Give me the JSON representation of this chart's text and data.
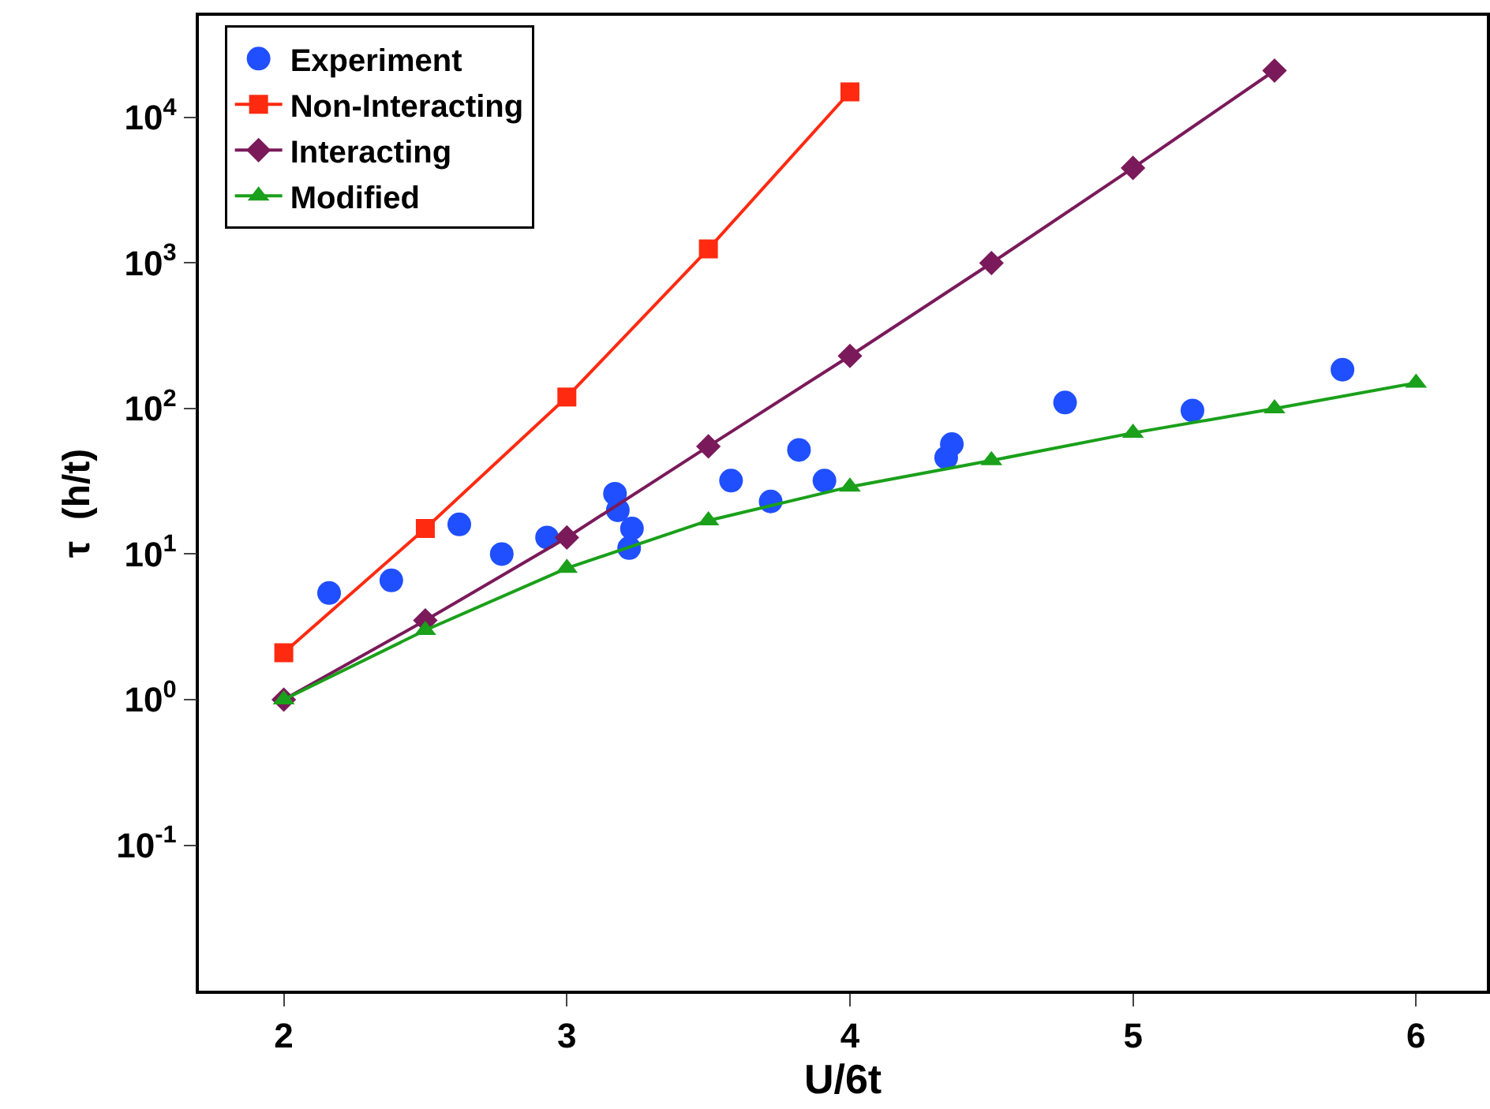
{
  "chart_data": {
    "type": "line",
    "xlabel": "U/6t",
    "ylabel": "τ  (h/t)",
    "log": "y",
    "grid": false,
    "legend": "top left",
    "xlim": [
      1.7,
      6.25
    ],
    "xticks": [
      2,
      3,
      4,
      5,
      6
    ],
    "ylim": [
      0.01,
      50000
    ],
    "yticks": [
      {
        "value": 0.1,
        "label": "10$^{-1}$"
      },
      {
        "value": 1,
        "label": "10$^{0}$"
      },
      {
        "value": 10,
        "label": "10$^{1}$"
      },
      {
        "value": 100,
        "label": "10$^{2}$"
      },
      {
        "value": 1000,
        "label": "10$^{3}$"
      },
      {
        "value": 10000,
        "label": "10$^{4}$"
      }
    ],
    "series": [
      {
        "name": "Experiment",
        "type": "scatter",
        "marker": "circle",
        "color": "#1f4fff",
        "x": [
          2.16,
          2.38,
          2.62,
          2.77,
          2.93,
          3.17,
          3.18,
          3.22,
          3.23,
          3.58,
          3.72,
          3.82,
          3.91,
          4.34,
          4.36,
          4.76,
          5.21,
          5.74
        ],
        "values": [
          5.4,
          6.6,
          16,
          10,
          13,
          26,
          20,
          11,
          15,
          32,
          23,
          52,
          32,
          46,
          57,
          110,
          97,
          185
        ]
      },
      {
        "name": "Non-Interacting",
        "marker": "square",
        "color": "#ff2a10",
        "x": [
          2,
          2.5,
          3,
          3.5,
          4
        ],
        "values": [
          2.1,
          15,
          120,
          1250,
          15000
        ]
      },
      {
        "name": "Interacting",
        "marker": "diamond",
        "color": "#7a1a5a",
        "x": [
          2,
          2.5,
          3,
          3.5,
          4,
          4.5,
          5,
          5.5
        ],
        "values": [
          1,
          3.5,
          13,
          55,
          230,
          1000,
          4500,
          21000
        ]
      },
      {
        "name": "Modified",
        "marker": "triangle",
        "color": "#1aa01a",
        "x": [
          2,
          2.5,
          3,
          3.5,
          4,
          4.5,
          5,
          5.5,
          6
        ],
        "values": [
          1,
          3,
          8,
          17,
          29,
          44,
          68,
          100,
          150
        ]
      }
    ]
  }
}
